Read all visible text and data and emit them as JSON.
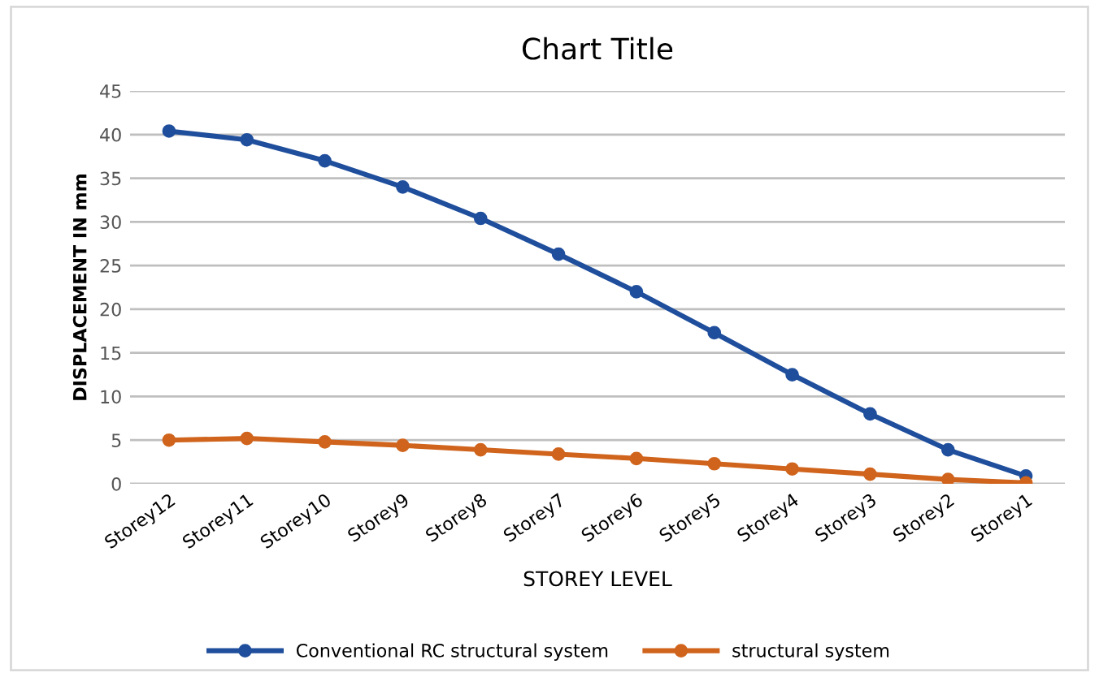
{
  "chart_data": {
    "type": "line",
    "title": "Chart Title",
    "xlabel": "STOREY LEVEL",
    "ylabel": "DISPLACEMENT IN mm",
    "categories": [
      "Storey12",
      "Storey11",
      "Storey10",
      "Storey9",
      "Storey8",
      "Storey7",
      "Storey6",
      "Storey5",
      "Storey4",
      "Storey3",
      "Storey2",
      "Storey1"
    ],
    "series": [
      {
        "name": "Conventional RC structural system",
        "color": "#1f4e9c",
        "values": [
          40.4,
          39.4,
          37.0,
          34.0,
          30.4,
          26.3,
          22.0,
          17.3,
          12.5,
          8.0,
          3.9,
          0.9
        ]
      },
      {
        "name": "structural system",
        "color": "#d0641c",
        "values": [
          5.0,
          5.2,
          4.8,
          4.4,
          3.9,
          3.4,
          2.9,
          2.3,
          1.7,
          1.1,
          0.5,
          0.1
        ]
      }
    ],
    "ylim": [
      0,
      45
    ],
    "yticks": [
      0,
      5,
      10,
      15,
      20,
      25,
      30,
      35,
      40,
      45
    ],
    "grid": "y",
    "legend": "bottom",
    "marker": "circle",
    "line_style": "solid"
  }
}
